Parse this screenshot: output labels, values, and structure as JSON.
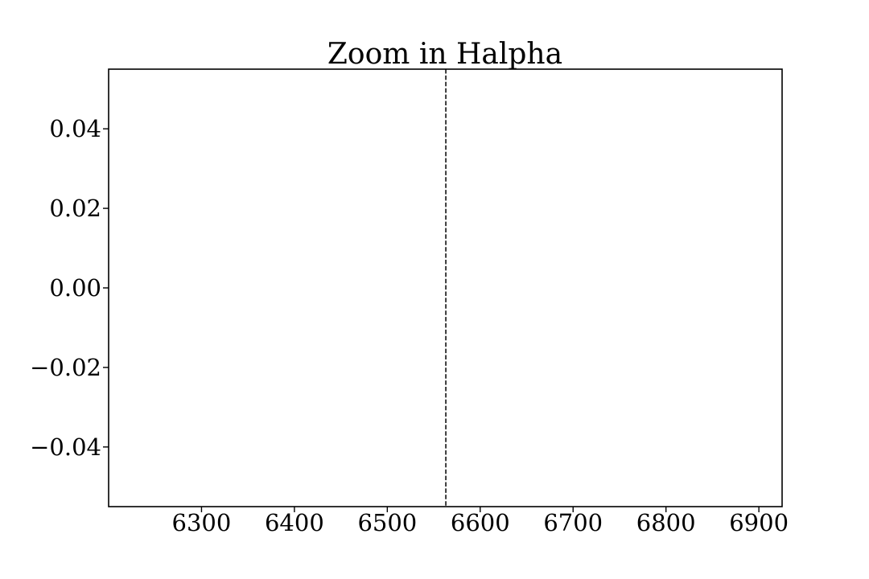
{
  "chart_data": {
    "type": "line",
    "title": "Zoom in Halpha",
    "xlabel": "",
    "ylabel": "",
    "xlim": [
      6200,
      6925
    ],
    "ylim": [
      -0.055,
      0.055
    ],
    "x_ticks": [
      6300,
      6400,
      6500,
      6600,
      6700,
      6800,
      6900
    ],
    "x_tick_labels": [
      "6300",
      "6400",
      "6500",
      "6600",
      "6700",
      "6800",
      "6900"
    ],
    "y_ticks": [
      0.04,
      0.02,
      0.0,
      -0.02,
      -0.04
    ],
    "y_tick_labels": [
      "0.04",
      "0.02",
      "0.00",
      "−0.02",
      "−0.04"
    ],
    "vertical_lines": [
      {
        "x": 6563,
        "style": "dashed",
        "color": "#000000"
      }
    ],
    "series": [],
    "grid": false
  }
}
